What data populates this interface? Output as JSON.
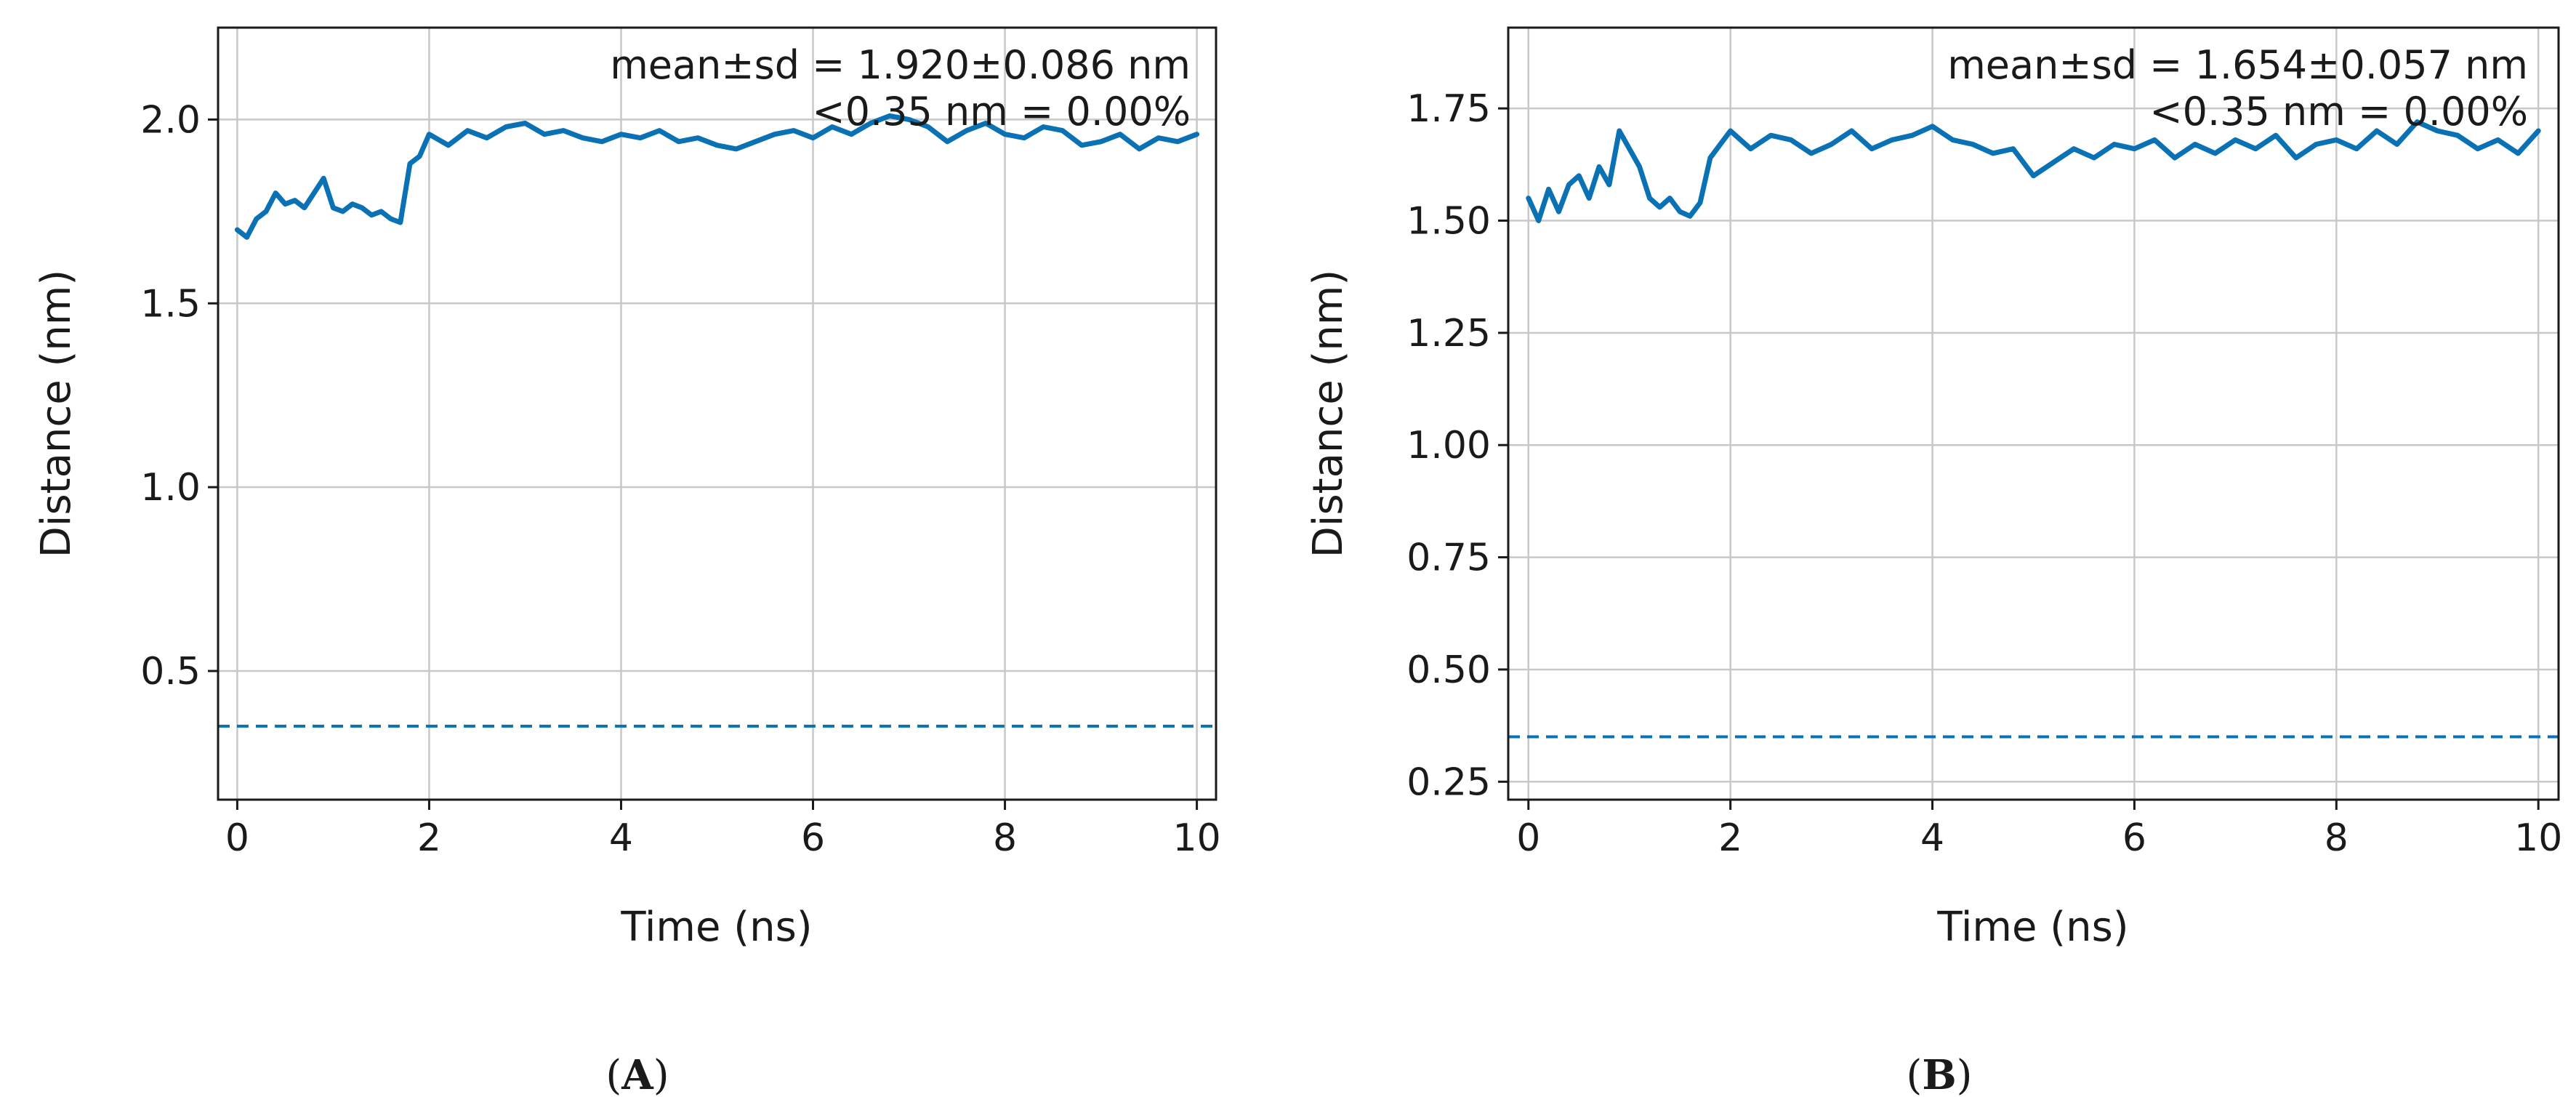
{
  "chart_data": [
    {
      "type": "line",
      "panel_label": "A",
      "xlabel": "Time (ns)",
      "ylabel": "Distance (nm)",
      "xlim": [
        -0.2,
        10.2
      ],
      "ylim": [
        0.15,
        2.25
      ],
      "xticks": [
        0,
        2,
        4,
        6,
        8,
        10
      ],
      "xtick_labels": [
        "0",
        "2",
        "4",
        "6",
        "8",
        "10"
      ],
      "yticks": [
        0.5,
        1.0,
        1.5,
        2.0
      ],
      "ytick_labels": [
        "0.5",
        "1.0",
        "1.5",
        "2.0"
      ],
      "grid": true,
      "line_color": "#0a72b4",
      "threshold": 0.35,
      "annotations": [
        "mean±sd = 1.920±0.086 nm",
        "<0.35 nm = 0.00%"
      ],
      "series": [
        {
          "x": [
            0.0,
            0.1,
            0.2,
            0.3,
            0.4,
            0.5,
            0.6,
            0.7,
            0.8,
            0.9,
            1.0,
            1.1,
            1.2,
            1.3,
            1.4,
            1.5,
            1.6,
            1.7,
            1.8,
            1.9,
            2.0,
            2.2,
            2.4,
            2.6,
            2.8,
            3.0,
            3.2,
            3.4,
            3.6,
            3.8,
            4.0,
            4.2,
            4.4,
            4.6,
            4.8,
            5.0,
            5.2,
            5.4,
            5.6,
            5.8,
            6.0,
            6.2,
            6.4,
            6.6,
            6.8,
            7.0,
            7.2,
            7.4,
            7.6,
            7.8,
            8.0,
            8.2,
            8.4,
            8.6,
            8.8,
            9.0,
            9.2,
            9.4,
            9.6,
            9.8,
            10.0
          ],
          "y": [
            1.7,
            1.68,
            1.73,
            1.75,
            1.8,
            1.77,
            1.78,
            1.76,
            1.8,
            1.84,
            1.76,
            1.75,
            1.77,
            1.76,
            1.74,
            1.75,
            1.73,
            1.72,
            1.88,
            1.9,
            1.96,
            1.93,
            1.97,
            1.95,
            1.98,
            1.99,
            1.96,
            1.97,
            1.95,
            1.94,
            1.96,
            1.95,
            1.97,
            1.94,
            1.95,
            1.93,
            1.92,
            1.94,
            1.96,
            1.97,
            1.95,
            1.98,
            1.96,
            1.99,
            2.01,
            2.0,
            1.98,
            1.94,
            1.97,
            1.99,
            1.96,
            1.95,
            1.98,
            1.97,
            1.93,
            1.94,
            1.96,
            1.92,
            1.95,
            1.94,
            1.96
          ]
        }
      ]
    },
    {
      "type": "line",
      "panel_label": "B",
      "xlabel": "Time (ns)",
      "ylabel": "Distance (nm)",
      "xlim": [
        -0.2,
        10.2
      ],
      "ylim": [
        0.21,
        1.93
      ],
      "xticks": [
        0,
        2,
        4,
        6,
        8,
        10
      ],
      "xtick_labels": [
        "0",
        "2",
        "4",
        "6",
        "8",
        "10"
      ],
      "yticks": [
        0.25,
        0.5,
        0.75,
        1.0,
        1.25,
        1.5,
        1.75
      ],
      "ytick_labels": [
        "0.25",
        "0.50",
        "0.75",
        "1.00",
        "1.25",
        "1.50",
        "1.75"
      ],
      "grid": true,
      "line_color": "#0a72b4",
      "threshold": 0.35,
      "annotations": [
        "mean±sd = 1.654±0.057 nm",
        "<0.35 nm = 0.00%"
      ],
      "series": [
        {
          "x": [
            0.0,
            0.1,
            0.2,
            0.3,
            0.4,
            0.5,
            0.6,
            0.7,
            0.8,
            0.9,
            1.0,
            1.1,
            1.2,
            1.3,
            1.4,
            1.5,
            1.6,
            1.7,
            1.8,
            1.9,
            2.0,
            2.2,
            2.4,
            2.6,
            2.8,
            3.0,
            3.2,
            3.4,
            3.6,
            3.8,
            4.0,
            4.2,
            4.4,
            4.6,
            4.8,
            5.0,
            5.2,
            5.4,
            5.6,
            5.8,
            6.0,
            6.2,
            6.4,
            6.6,
            6.8,
            7.0,
            7.2,
            7.4,
            7.6,
            7.8,
            8.0,
            8.2,
            8.4,
            8.6,
            8.8,
            9.0,
            9.2,
            9.4,
            9.6,
            9.8,
            10.0
          ],
          "y": [
            1.55,
            1.5,
            1.57,
            1.52,
            1.58,
            1.6,
            1.55,
            1.62,
            1.58,
            1.7,
            1.66,
            1.62,
            1.55,
            1.53,
            1.55,
            1.52,
            1.51,
            1.54,
            1.64,
            1.67,
            1.7,
            1.66,
            1.69,
            1.68,
            1.65,
            1.67,
            1.7,
            1.66,
            1.68,
            1.69,
            1.71,
            1.68,
            1.67,
            1.65,
            1.66,
            1.6,
            1.63,
            1.66,
            1.64,
            1.67,
            1.66,
            1.68,
            1.64,
            1.67,
            1.65,
            1.68,
            1.66,
            1.69,
            1.64,
            1.67,
            1.68,
            1.66,
            1.7,
            1.67,
            1.72,
            1.7,
            1.69,
            1.66,
            1.68,
            1.65,
            1.7
          ]
        }
      ]
    }
  ]
}
